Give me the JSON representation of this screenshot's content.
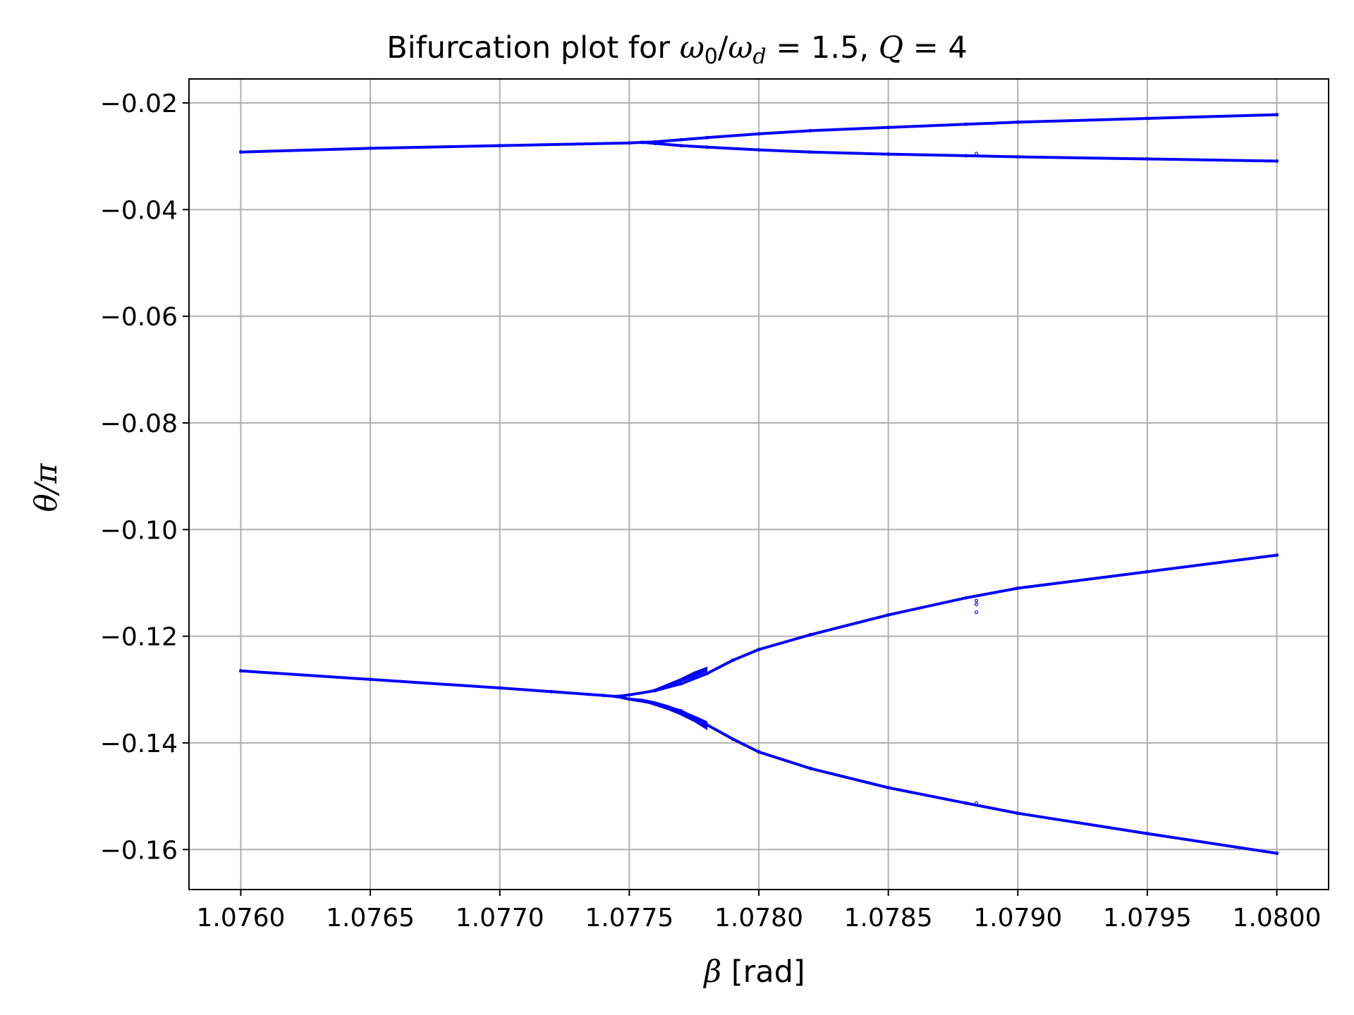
{
  "chart_data": {
    "type": "scatter",
    "title": {
      "prefix": "Bifurcation plot for ",
      "ratio_num": "ω",
      "ratio_num_sub": "0",
      "ratio_sep": "/",
      "ratio_den": "ω",
      "ratio_den_sub": "d",
      "ratio_value": " = 1.5, ",
      "q_symbol": "Q",
      "q_value": " = 4"
    },
    "xlabel": {
      "symbol": "β",
      "unit": " [rad]"
    },
    "ylabel": "θ/π",
    "xlim": [
      1.0758,
      1.0802
    ],
    "ylim": [
      -0.1675,
      -0.0155
    ],
    "xticks": [
      1.076,
      1.0765,
      1.077,
      1.0775,
      1.078,
      1.0785,
      1.079,
      1.0795,
      1.08
    ],
    "xtick_labels": [
      "1.0760",
      "1.0765",
      "1.0770",
      "1.0775",
      "1.0780",
      "1.0785",
      "1.0790",
      "1.0795",
      "1.0800"
    ],
    "yticks": [
      -0.02,
      -0.04,
      -0.06,
      -0.08,
      -0.1,
      -0.12,
      -0.14,
      -0.16
    ],
    "ytick_labels": [
      "−0.02",
      "−0.04",
      "−0.06",
      "−0.08",
      "−0.10",
      "−0.12",
      "−0.14",
      "−0.16"
    ],
    "grid": true,
    "marker_color": "#0000ff",
    "series": [
      {
        "x": [
          1.076,
          1.0765,
          1.077,
          1.0775,
          1.07755,
          1.0776,
          1.0777,
          1.0778,
          1.078,
          1.0782,
          1.0785,
          1.0788,
          1.079,
          1.0795,
          1.08
        ],
        "y": [
          -0.0292,
          -0.0285,
          -0.028,
          -0.0275,
          -0.0274,
          -0.0273,
          -0.0269,
          -0.0265,
          -0.0258,
          -0.0252,
          -0.0246,
          -0.024,
          -0.0236,
          -0.0229,
          -0.0222
        ]
      },
      {
        "x": [
          1.07755,
          1.0776,
          1.0777,
          1.0778,
          1.078,
          1.0782,
          1.0785,
          1.0788,
          1.079,
          1.0795,
          1.08
        ],
        "y": [
          -0.0274,
          -0.0276,
          -0.028,
          -0.0283,
          -0.0288,
          -0.0292,
          -0.0296,
          -0.0299,
          -0.0301,
          -0.0305,
          -0.0309
        ]
      },
      {
        "x": [
          1.076,
          1.0765,
          1.077,
          1.0772,
          1.0774,
          1.07745,
          1.0775,
          1.0776,
          1.0777,
          1.0778,
          1.0779,
          1.078,
          1.0782,
          1.0785,
          1.0788,
          1.079,
          1.0795,
          1.08
        ],
        "y": [
          -0.1265,
          -0.1281,
          -0.1297,
          -0.1304,
          -0.1311,
          -0.1313,
          -0.131,
          -0.1302,
          -0.1289,
          -0.127,
          -0.1245,
          -0.1225,
          -0.1197,
          -0.116,
          -0.1128,
          -0.111,
          -0.1079,
          -0.1048
        ]
      },
      {
        "x": [
          1.07745,
          1.0775,
          1.0776,
          1.0777,
          1.0778,
          1.0779,
          1.078,
          1.0782,
          1.0785,
          1.0788,
          1.079,
          1.0795,
          1.08
        ],
        "y": [
          -0.1313,
          -0.1318,
          -0.1326,
          -0.134,
          -0.1366,
          -0.1393,
          -0.1417,
          -0.1448,
          -0.1484,
          -0.1513,
          -0.1532,
          -0.157,
          -0.1607
        ]
      }
    ],
    "outliers": [
      {
        "x": 1.07884,
        "y": -0.1133
      },
      {
        "x": 1.07884,
        "y": -0.114
      },
      {
        "x": 1.07884,
        "y": -0.1155
      },
      {
        "x": 1.07884,
        "y": -0.1513
      },
      {
        "x": 1.07884,
        "y": -0.0295
      }
    ],
    "fans": [
      {
        "lower_x": [
          1.0775,
          1.07755,
          1.0776,
          1.07765,
          1.0777,
          1.07775,
          1.0778
        ],
        "lower_y": [
          -0.1311,
          -0.1308,
          -0.1301,
          -0.1294,
          -0.1285,
          -0.1276,
          -0.1266
        ],
        "upper_x": [
          1.0778,
          1.07775,
          1.0777,
          1.07765,
          1.0776,
          1.07755,
          1.0775
        ],
        "upper_y": [
          -0.1258,
          -0.1267,
          -0.1279,
          -0.1289,
          -0.1299,
          -0.1306,
          -0.1311
        ]
      },
      {
        "lower_x": [
          1.0775,
          1.07755,
          1.0776,
          1.07765,
          1.0777,
          1.07775,
          1.0778
        ],
        "lower_y": [
          -0.1317,
          -0.1322,
          -0.133,
          -0.1338,
          -0.1348,
          -0.136,
          -0.1375
        ],
        "upper_x": [
          1.0778,
          1.07775,
          1.0777,
          1.07765,
          1.0776,
          1.07755,
          1.0775
        ],
        "upper_y": [
          -0.136,
          -0.1349,
          -0.1339,
          -0.133,
          -0.1323,
          -0.1318,
          -0.1316
        ]
      }
    ]
  }
}
